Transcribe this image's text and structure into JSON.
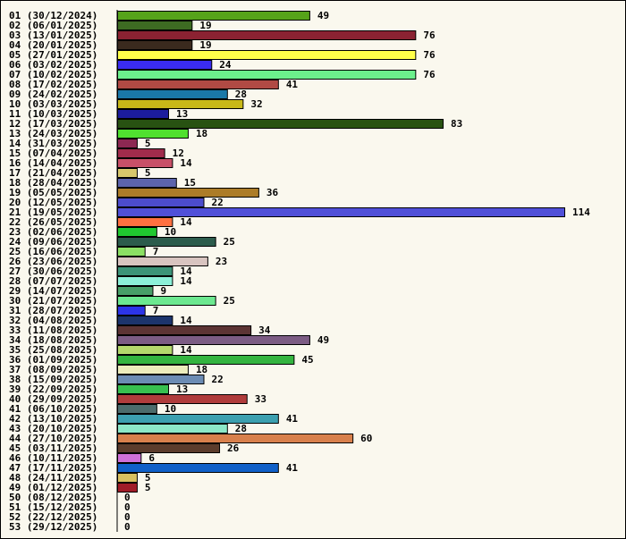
{
  "chart_data": {
    "type": "bar",
    "orientation": "horizontal",
    "categories": [
      "01 (30/12/2024)",
      "02 (06/01/2025)",
      "03 (13/01/2025)",
      "04 (20/01/2025)",
      "05 (27/01/2025)",
      "06 (03/02/2025)",
      "07 (10/02/2025)",
      "08 (17/02/2025)",
      "09 (24/02/2025)",
      "10 (03/03/2025)",
      "11 (10/03/2025)",
      "12 (17/03/2025)",
      "13 (24/03/2025)",
      "14 (31/03/2025)",
      "15 (07/04/2025)",
      "16 (14/04/2025)",
      "17 (21/04/2025)",
      "18 (28/04/2025)",
      "19 (05/05/2025)",
      "20 (12/05/2025)",
      "21 (19/05/2025)",
      "22 (26/05/2025)",
      "23 (02/06/2025)",
      "24 (09/06/2025)",
      "25 (16/06/2025)",
      "26 (23/06/2025)",
      "27 (30/06/2025)",
      "28 (07/07/2025)",
      "29 (14/07/2025)",
      "30 (21/07/2025)",
      "31 (28/07/2025)",
      "32 (04/08/2025)",
      "33 (11/08/2025)",
      "34 (18/08/2025)",
      "35 (25/08/2025)",
      "36 (01/09/2025)",
      "37 (08/09/2025)",
      "38 (15/09/2025)",
      "39 (22/09/2025)",
      "40 (29/09/2025)",
      "41 (06/10/2025)",
      "42 (13/10/2025)",
      "43 (20/10/2025)",
      "44 (27/10/2025)",
      "45 (03/11/2025)",
      "46 (10/11/2025)",
      "47 (17/11/2025)",
      "48 (24/11/2025)",
      "49 (01/12/2025)",
      "50 (08/12/2025)",
      "51 (15/12/2025)",
      "52 (22/12/2025)",
      "53 (29/12/2025)"
    ],
    "values": [
      49,
      19,
      76,
      19,
      76,
      24,
      76,
      41,
      28,
      32,
      13,
      83,
      18,
      5,
      12,
      14,
      5,
      15,
      36,
      22,
      114,
      14,
      10,
      25,
      7,
      23,
      14,
      14,
      9,
      25,
      7,
      14,
      34,
      49,
      14,
      45,
      18,
      22,
      13,
      33,
      10,
      41,
      28,
      60,
      26,
      6,
      41,
      5,
      5,
      0,
      0,
      0,
      0
    ],
    "colors": [
      "#56a31a",
      "#3d6b22",
      "#8b2232",
      "#3a2a1e",
      "#ffff4a",
      "#3a2cf0",
      "#6cf08c",
      "#b04a44",
      "#1a78a8",
      "#c8b818",
      "#1c1c9c",
      "#285212",
      "#50e030",
      "#8c2852",
      "#a02c4c",
      "#c85068",
      "#d8c86c",
      "#5c64ac",
      "#ac7c28",
      "#4c4ccc",
      "#5050d8",
      "#ff7040",
      "#20c830",
      "#2c5c4c",
      "#8ce064",
      "#d8c4c0",
      "#3c9478",
      "#8cf0d8",
      "#48a068",
      "#6ce890",
      "#2c34e8",
      "#1c346c",
      "#5c3434",
      "#7c5c84",
      "#b4d86c",
      "#34b440",
      "#ececbc",
      "#6c8cb4",
      "#38c050",
      "#b03c3c",
      "#4c6c6c",
      "#3ca0b0",
      "#8ce8c8",
      "#d8804c",
      "#5c3c2c",
      "#d070d8",
      "#1060c8",
      "#d8c060",
      "#a01c28",
      "#888888",
      "#888888",
      "#888888",
      "#888888"
    ],
    "xlim": [
      0,
      114
    ],
    "grid": false,
    "title": "",
    "xlabel": "",
    "ylabel": ""
  }
}
